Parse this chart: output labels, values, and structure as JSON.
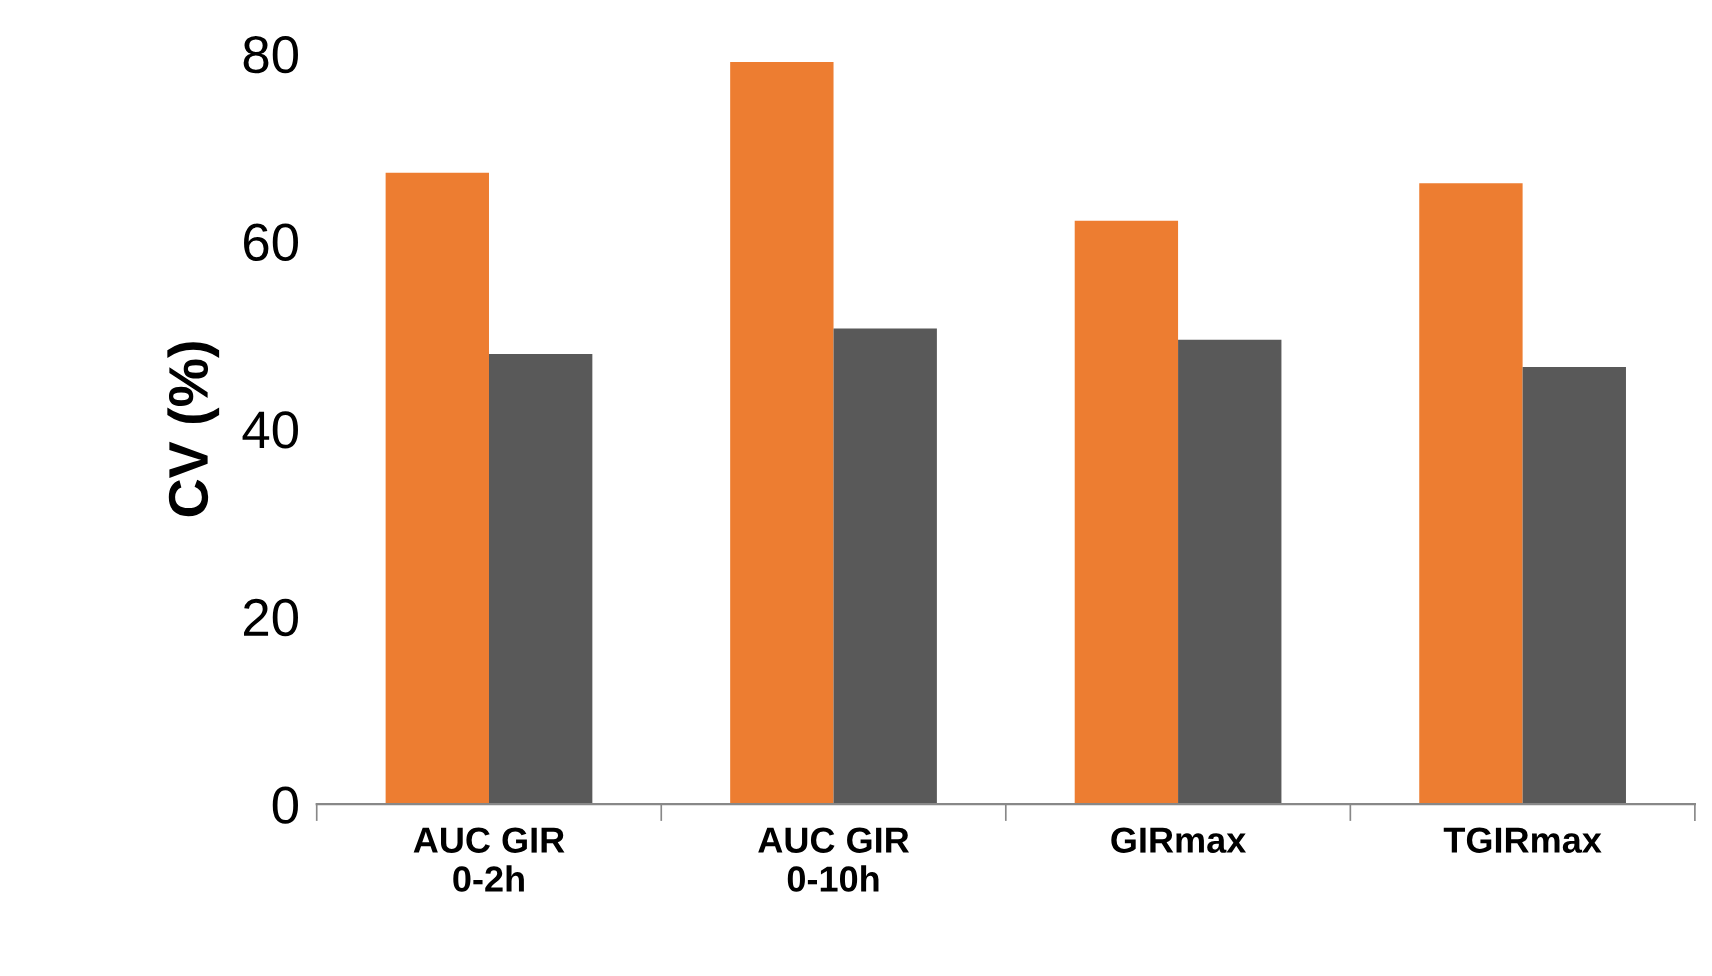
{
  "chart_data": {
    "type": "bar",
    "ylabel": "CV (%)",
    "categories": [
      "AUC GIR\n0-2h",
      "AUC GIR\n0-10h",
      "GIRmax",
      "TGIRmax"
    ],
    "series": [
      {
        "color": "#ed7d31",
        "values": [
          67.3,
          79.1,
          62.2,
          66.2
        ]
      },
      {
        "color": "#595959",
        "values": [
          48.0,
          50.7,
          49.5,
          46.6
        ]
      }
    ],
    "ylim": [
      0,
      80
    ],
    "yticks": [
      0,
      20,
      40,
      60,
      80
    ],
    "grid": false,
    "legend": false
  }
}
